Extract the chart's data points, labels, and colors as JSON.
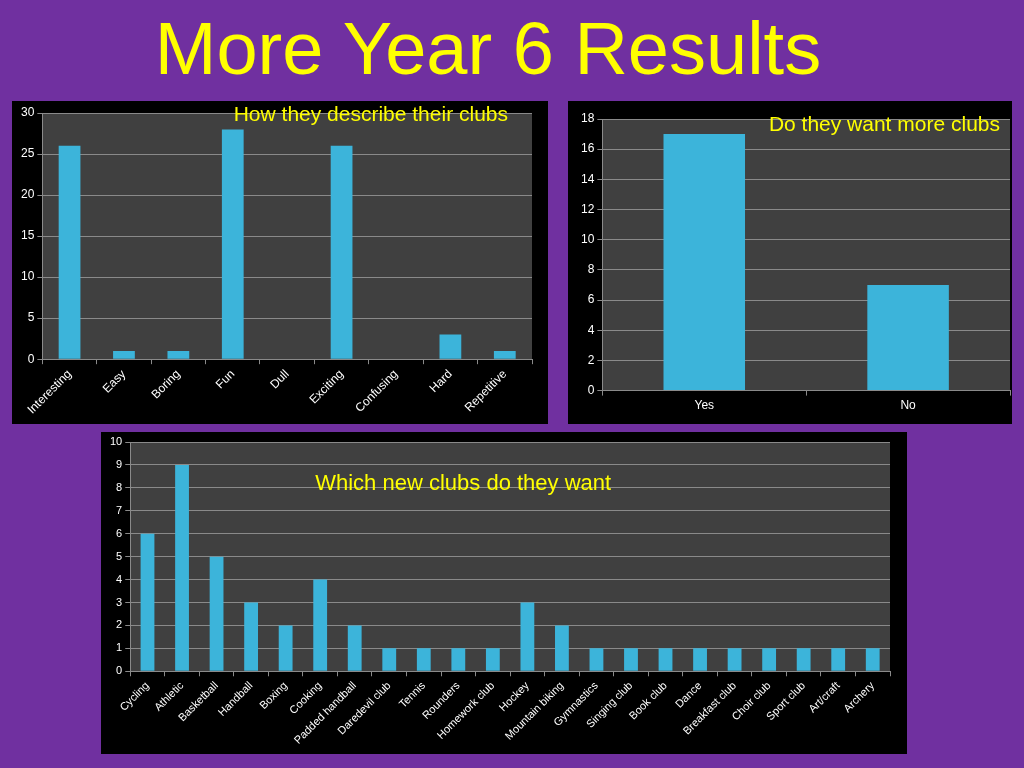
{
  "chart_data": [
    {
      "type": "bar",
      "title": "How they describe their clubs",
      "annotations": [
        "More Year 6 Results"
      ],
      "categories": [
        "Interesting",
        "Easy",
        "Boring",
        "Fun",
        "Dull",
        "Exciting",
        "Confusing",
        "Hard",
        "Repetitive"
      ],
      "values": [
        26,
        1,
        1,
        28,
        0,
        26,
        0,
        3,
        1
      ],
      "color": "#3cb4da",
      "ylim": [
        0,
        30
      ],
      "yticks": [
        0,
        5,
        10,
        15,
        20,
        25,
        30
      ],
      "grid": "y"
    },
    {
      "type": "bar",
      "title": "Do they want more clubs",
      "categories": [
        "Yes",
        "No"
      ],
      "values": [
        17,
        7
      ],
      "color": "#3cb4da",
      "ylim": [
        0,
        18
      ],
      "yticks": [
        0,
        2,
        4,
        6,
        8,
        10,
        12,
        14,
        16,
        18
      ],
      "grid": "y"
    },
    {
      "type": "bar",
      "title": "Which new clubs do they want",
      "categories": [
        "Cycling",
        "Athletic",
        "Basketball",
        "Handball",
        "Boxing",
        "Cooking",
        "Padded handball",
        "Daredevil club",
        "Tennis",
        "Rounders",
        "Homework club",
        "Hockey",
        "Mountain biking",
        "Gymnastics",
        "Singing club",
        "Book club",
        "Dance",
        "Breakfast club",
        "Choir club",
        "Sport club",
        "Art/craft",
        "Archery"
      ],
      "values": [
        6,
        9,
        5,
        3,
        2,
        4,
        2,
        1,
        1,
        1,
        1,
        3,
        2,
        1,
        1,
        1,
        1,
        1,
        1,
        1,
        1,
        1
      ],
      "color": "#3cb4da",
      "ylim": [
        0,
        10
      ],
      "yticks": [
        0,
        1,
        2,
        3,
        4,
        5,
        6,
        7,
        8,
        9,
        10
      ],
      "grid": "y"
    }
  ]
}
